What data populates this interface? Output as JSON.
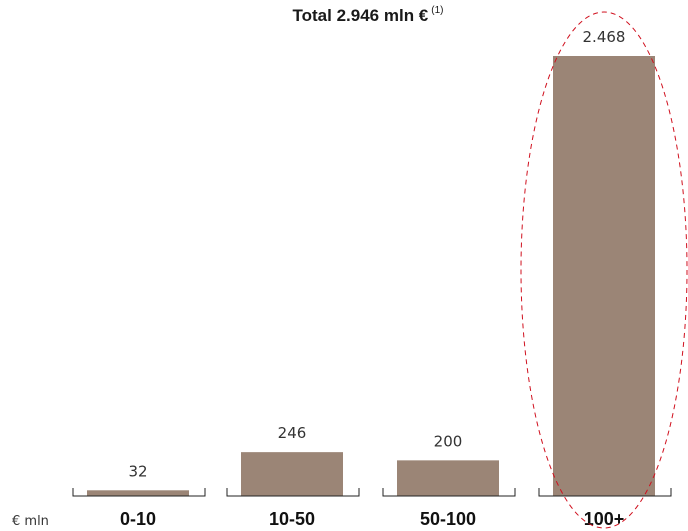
{
  "title": {
    "text": "Total 2.946 mln €",
    "footnote": "(1)"
  },
  "unit_label": "€ mln",
  "chart_data": {
    "type": "bar",
    "categories": [
      "0-10",
      "10-50",
      "50-100",
      "100+"
    ],
    "values": [
      32,
      246,
      200,
      2468
    ],
    "value_labels": [
      "32",
      "246",
      "200",
      "2.468"
    ],
    "title": "Total 2.946 mln € (1)",
    "ylabel": "€ mln",
    "ylim": [
      0,
      2468
    ],
    "grid": false,
    "legend": "none",
    "bar_color": "#9B8576",
    "highlight": {
      "category": "100+",
      "style": "red dashed ellipse",
      "color": "#D0101E"
    }
  }
}
